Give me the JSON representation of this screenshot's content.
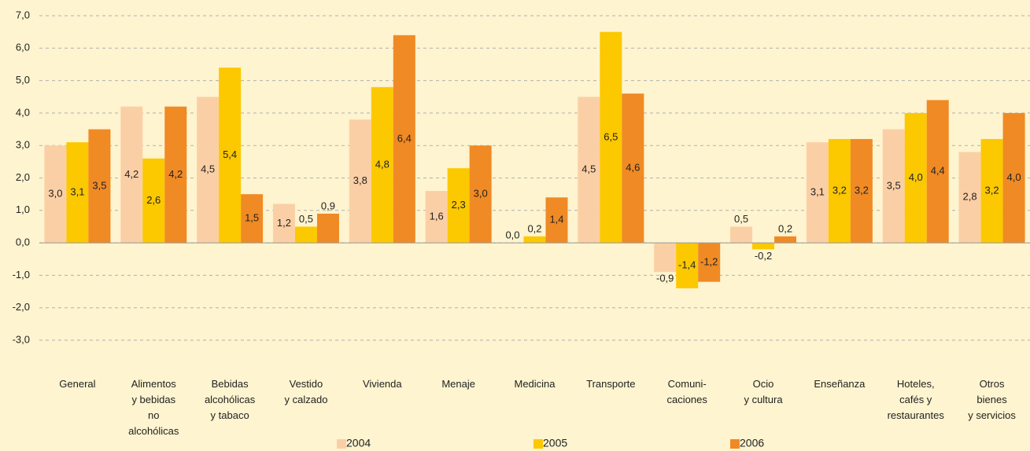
{
  "chart_data": {
    "type": "bar",
    "categories": [
      "General",
      "Alimentos\ny bebidas\nno\nalcohólicas",
      "Bebidas\nalcohólicas\ny tabaco",
      "Vestido\ny calzado",
      "Vivienda",
      "Menaje",
      "Medicina",
      "Transporte",
      "Comuni-\ncaciones",
      "Ocio\ny cultura",
      "Enseñanza",
      "Hoteles,\ncafés y\nrestaurantes",
      "Otros\nbienes\ny servicios"
    ],
    "series": [
      {
        "name": "2004",
        "color": "#fbcfa5",
        "values": [
          3.0,
          4.2,
          4.5,
          1.2,
          3.8,
          1.6,
          0.0,
          4.5,
          -0.9,
          0.5,
          3.1,
          3.5,
          2.8
        ],
        "value_labels": [
          "3,0",
          "4,2",
          "4,5",
          "1,2",
          "3,8",
          "1,6",
          "0,0",
          "4,5",
          "-0,9",
          "0,5",
          "3,1",
          "3,5",
          "2,8"
        ]
      },
      {
        "name": "2005",
        "color": "#fcc800",
        "values": [
          3.1,
          2.6,
          5.4,
          0.5,
          4.8,
          2.3,
          0.2,
          6.5,
          -1.4,
          -0.2,
          3.2,
          4.0,
          3.2
        ],
        "value_labels": [
          "3,1",
          "2,6",
          "5,4",
          "0,5",
          "4,8",
          "2,3",
          "0,2",
          "6,5",
          "-1,4",
          "-0,2",
          "3,2",
          "4,0",
          "3,2"
        ]
      },
      {
        "name": "2006",
        "color": "#f08a24",
        "values": [
          3.5,
          4.2,
          1.5,
          0.9,
          6.4,
          3.0,
          1.4,
          4.6,
          -1.2,
          0.2,
          3.2,
          4.4,
          4.0
        ],
        "value_labels": [
          "3,5",
          "4,2",
          "1,5",
          "0,9",
          "6,4",
          "3,0",
          "1,4",
          "4,6",
          "-1,2",
          "0,2",
          "3,2",
          "4,4",
          "4,0"
        ]
      }
    ],
    "ylim": [
      -3,
      7
    ],
    "yticks": [
      {
        "value": -3,
        "label": "-3,0"
      },
      {
        "value": -2,
        "label": "-2,0"
      },
      {
        "value": -1,
        "label": "-1,0"
      },
      {
        "value": 0,
        "label": "0,0"
      },
      {
        "value": 1,
        "label": "1,0"
      },
      {
        "value": 2,
        "label": "2,0"
      },
      {
        "value": 3,
        "label": "3,0"
      },
      {
        "value": 4,
        "label": "4,0"
      },
      {
        "value": 5,
        "label": "5,0"
      },
      {
        "value": 6,
        "label": "6,0"
      },
      {
        "value": 7,
        "label": "7,0"
      }
    ],
    "grid": true,
    "legend": "bottom"
  }
}
